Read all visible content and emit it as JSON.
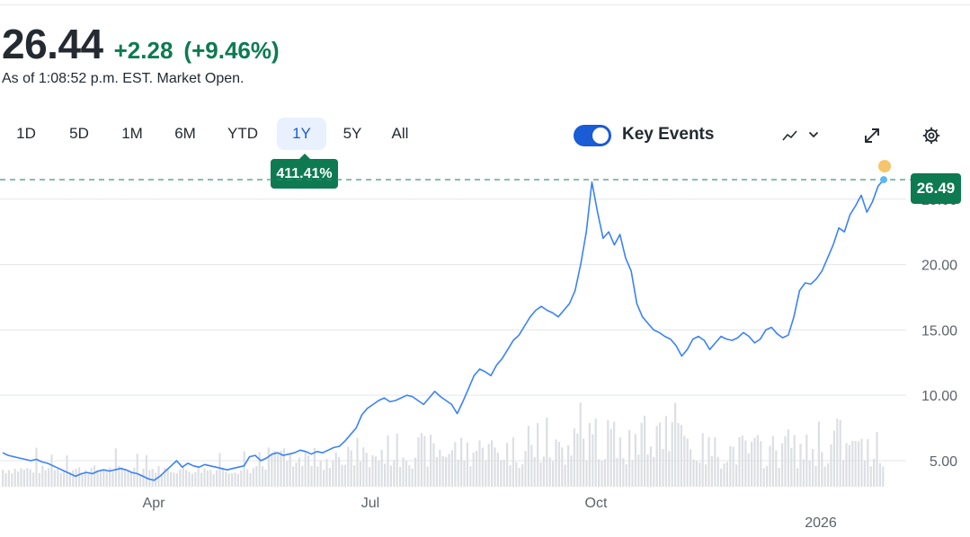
{
  "quote": {
    "price": "26.44",
    "change": "+2.28",
    "change_pct": "(+9.46%)",
    "as_of": "As of 1:08:52 p.m. EST. Market Open."
  },
  "ranges": [
    {
      "label": "1D",
      "active": false
    },
    {
      "label": "5D",
      "active": false
    },
    {
      "label": "1M",
      "active": false
    },
    {
      "label": "6M",
      "active": false
    },
    {
      "label": "YTD",
      "active": false
    },
    {
      "label": "1Y",
      "active": true
    },
    {
      "label": "5Y",
      "active": false
    },
    {
      "label": "All",
      "active": false
    }
  ],
  "period_return": "411.41%",
  "key_events": {
    "label": "Key Events",
    "enabled": true
  },
  "controls": {
    "chart_type_icon": "mountain-chart-icon",
    "dropdown_icon": "chevron-down-icon",
    "expand_icon": "expand-icon",
    "settings_icon": "gear-icon"
  },
  "colors": {
    "line": "#3b82f6",
    "positive": "#0d7a52",
    "volume": "#dcdfe3",
    "event_marker": "#f5c46b",
    "last_point": "#5cb8f0"
  },
  "chart_data": {
    "type": "line",
    "title": "",
    "xlabel": "",
    "ylabel": "",
    "x_ticks": [
      "Apr",
      "Jul",
      "Oct",
      "2026"
    ],
    "y_ticks": [
      "5.00",
      "10.00",
      "15.00",
      "20.00",
      "25.00"
    ],
    "ylim": [
      2.8,
      27.8
    ],
    "last_price_label": "26.49",
    "reference_line_value": 26.49,
    "grid": true,
    "volume_bars": true,
    "series": [
      {
        "values": [
          5.6,
          5.4,
          5.3,
          5.2,
          5.1,
          5.0,
          5.1,
          4.9,
          4.8,
          4.6,
          4.4,
          4.2,
          4.0,
          3.8,
          4.0,
          4.1,
          4.0,
          4.2,
          4.3,
          4.2,
          4.3,
          4.4,
          4.3,
          4.1,
          4.0,
          3.8,
          3.6,
          3.5,
          3.8,
          4.2,
          4.6,
          5.0,
          4.5,
          4.8,
          4.6,
          4.5,
          4.7,
          4.6,
          4.5,
          4.4,
          4.3,
          4.4,
          4.5,
          4.6,
          5.3,
          5.4,
          5.0,
          5.2,
          5.5,
          5.6,
          5.4,
          5.5,
          5.6,
          5.8,
          5.7,
          5.5,
          5.7,
          5.6,
          5.8,
          6.0,
          6.1,
          6.5,
          7.0,
          7.5,
          8.5,
          9.0,
          9.3,
          9.6,
          9.8,
          9.5,
          9.6,
          9.8,
          10.0,
          9.9,
          9.6,
          9.3,
          9.8,
          10.3,
          9.9,
          9.6,
          9.3,
          8.6,
          9.5,
          10.5,
          11.5,
          12.0,
          11.8,
          11.5,
          12.3,
          12.8,
          13.5,
          14.2,
          14.6,
          15.3,
          16.0,
          16.5,
          16.8,
          16.5,
          16.3,
          16.0,
          16.5,
          17.0,
          18.0,
          20.0,
          22.5,
          26.3,
          24.0,
          22.0,
          22.5,
          21.5,
          22.3,
          20.5,
          19.5,
          17.0,
          16.0,
          15.5,
          15.0,
          14.8,
          14.5,
          14.3,
          13.8,
          13.0,
          13.5,
          14.3,
          14.5,
          14.2,
          13.5,
          14.0,
          14.5,
          14.3,
          14.2,
          14.4,
          14.8,
          14.5,
          14.0,
          14.3,
          15.0,
          15.2,
          14.7,
          14.4,
          14.6,
          16.0,
          18.0,
          18.6,
          18.5,
          18.9,
          19.5,
          20.5,
          21.5,
          22.8,
          22.5,
          23.8,
          24.5,
          25.3,
          24.0,
          24.8,
          26.0,
          26.49
        ]
      }
    ]
  }
}
